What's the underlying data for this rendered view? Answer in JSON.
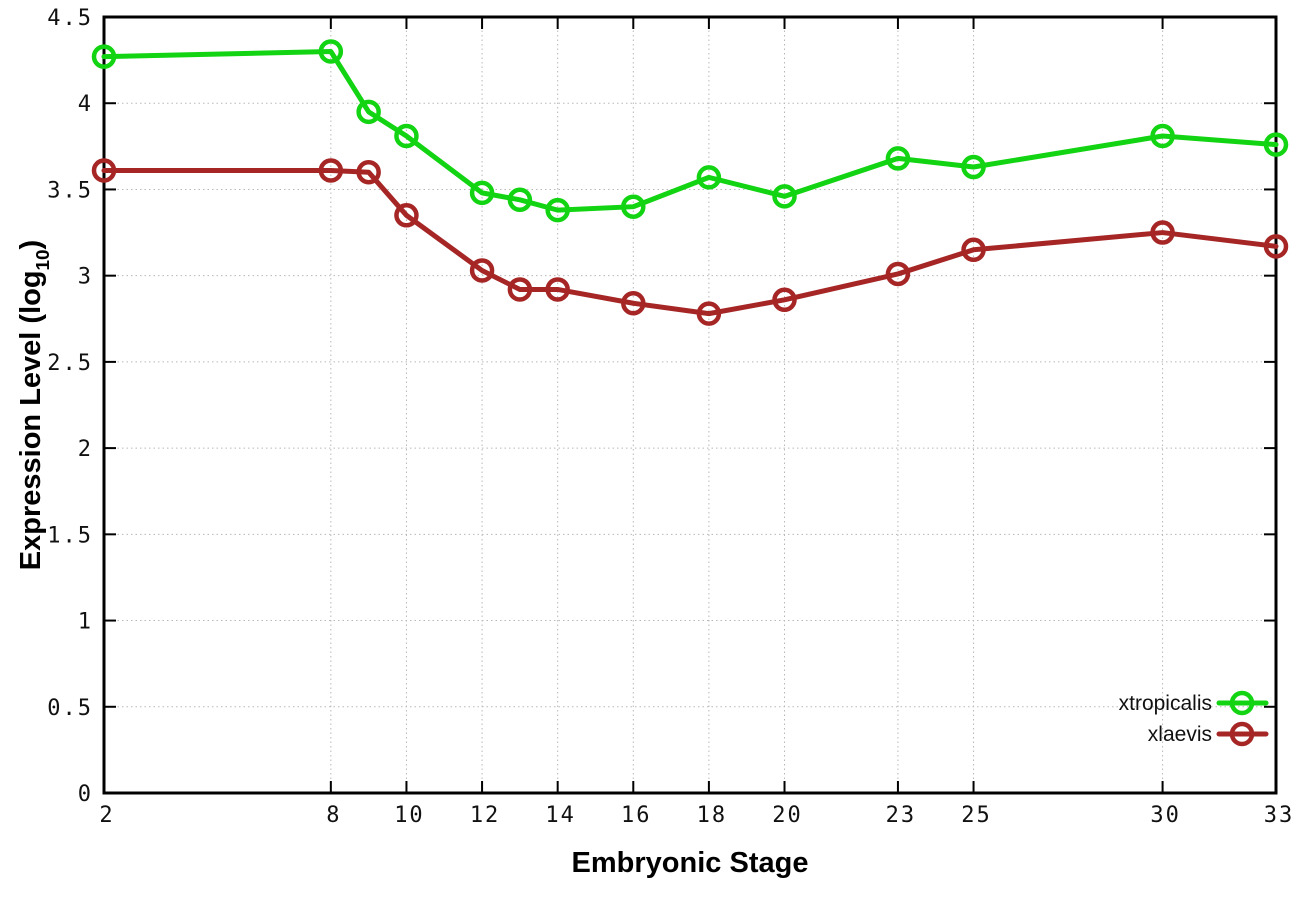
{
  "chart_data": {
    "type": "line",
    "title": "",
    "xlabel": "Embryonic Stage",
    "ylabel": "Expression Level (log10)",
    "ylabel_parts": {
      "prefix": "Expression Level (log",
      "subscript": "10",
      "suffix": ")"
    },
    "xlim": [
      2,
      33
    ],
    "ylim": [
      0,
      4.5
    ],
    "xticks": [
      2,
      8,
      10,
      12,
      14,
      16,
      18,
      20,
      23,
      25,
      30,
      33
    ],
    "xtick_labels": [
      "2",
      "8",
      "10",
      "12",
      "14",
      "16",
      "18",
      "20",
      "23",
      "25",
      "30",
      "33"
    ],
    "yticks": [
      0,
      0.5,
      1,
      1.5,
      2,
      2.5,
      3,
      3.5,
      4,
      4.5
    ],
    "ytick_labels": [
      "0",
      "0.5",
      "1",
      "1.5",
      "2",
      "2.5",
      "3",
      "3.5",
      "4",
      "4.5"
    ],
    "grid": true,
    "grid_style": "dotted",
    "legend_position": "bottom-right",
    "colors": {
      "axis": "#000000",
      "grid": "#b8b8b8",
      "background": "#ffffff"
    },
    "series": [
      {
        "name": "xtropicalis",
        "color": "#12d412",
        "marker": "open-circle",
        "x": [
          2,
          8,
          9,
          10,
          12,
          13,
          14,
          16,
          18,
          20,
          23,
          25,
          30,
          33
        ],
        "y": [
          4.27,
          4.3,
          3.95,
          3.81,
          3.48,
          3.44,
          3.38,
          3.4,
          3.57,
          3.46,
          3.68,
          3.63,
          3.81,
          3.76
        ]
      },
      {
        "name": "xlaevis",
        "color": "#a62626",
        "marker": "open-circle",
        "x": [
          2,
          8,
          9,
          10,
          12,
          13,
          14,
          16,
          18,
          20,
          23,
          25,
          30,
          33
        ],
        "y": [
          3.61,
          3.61,
          3.6,
          3.35,
          3.03,
          2.92,
          2.92,
          2.84,
          2.78,
          2.86,
          3.01,
          3.15,
          3.25,
          3.17
        ]
      }
    ]
  }
}
